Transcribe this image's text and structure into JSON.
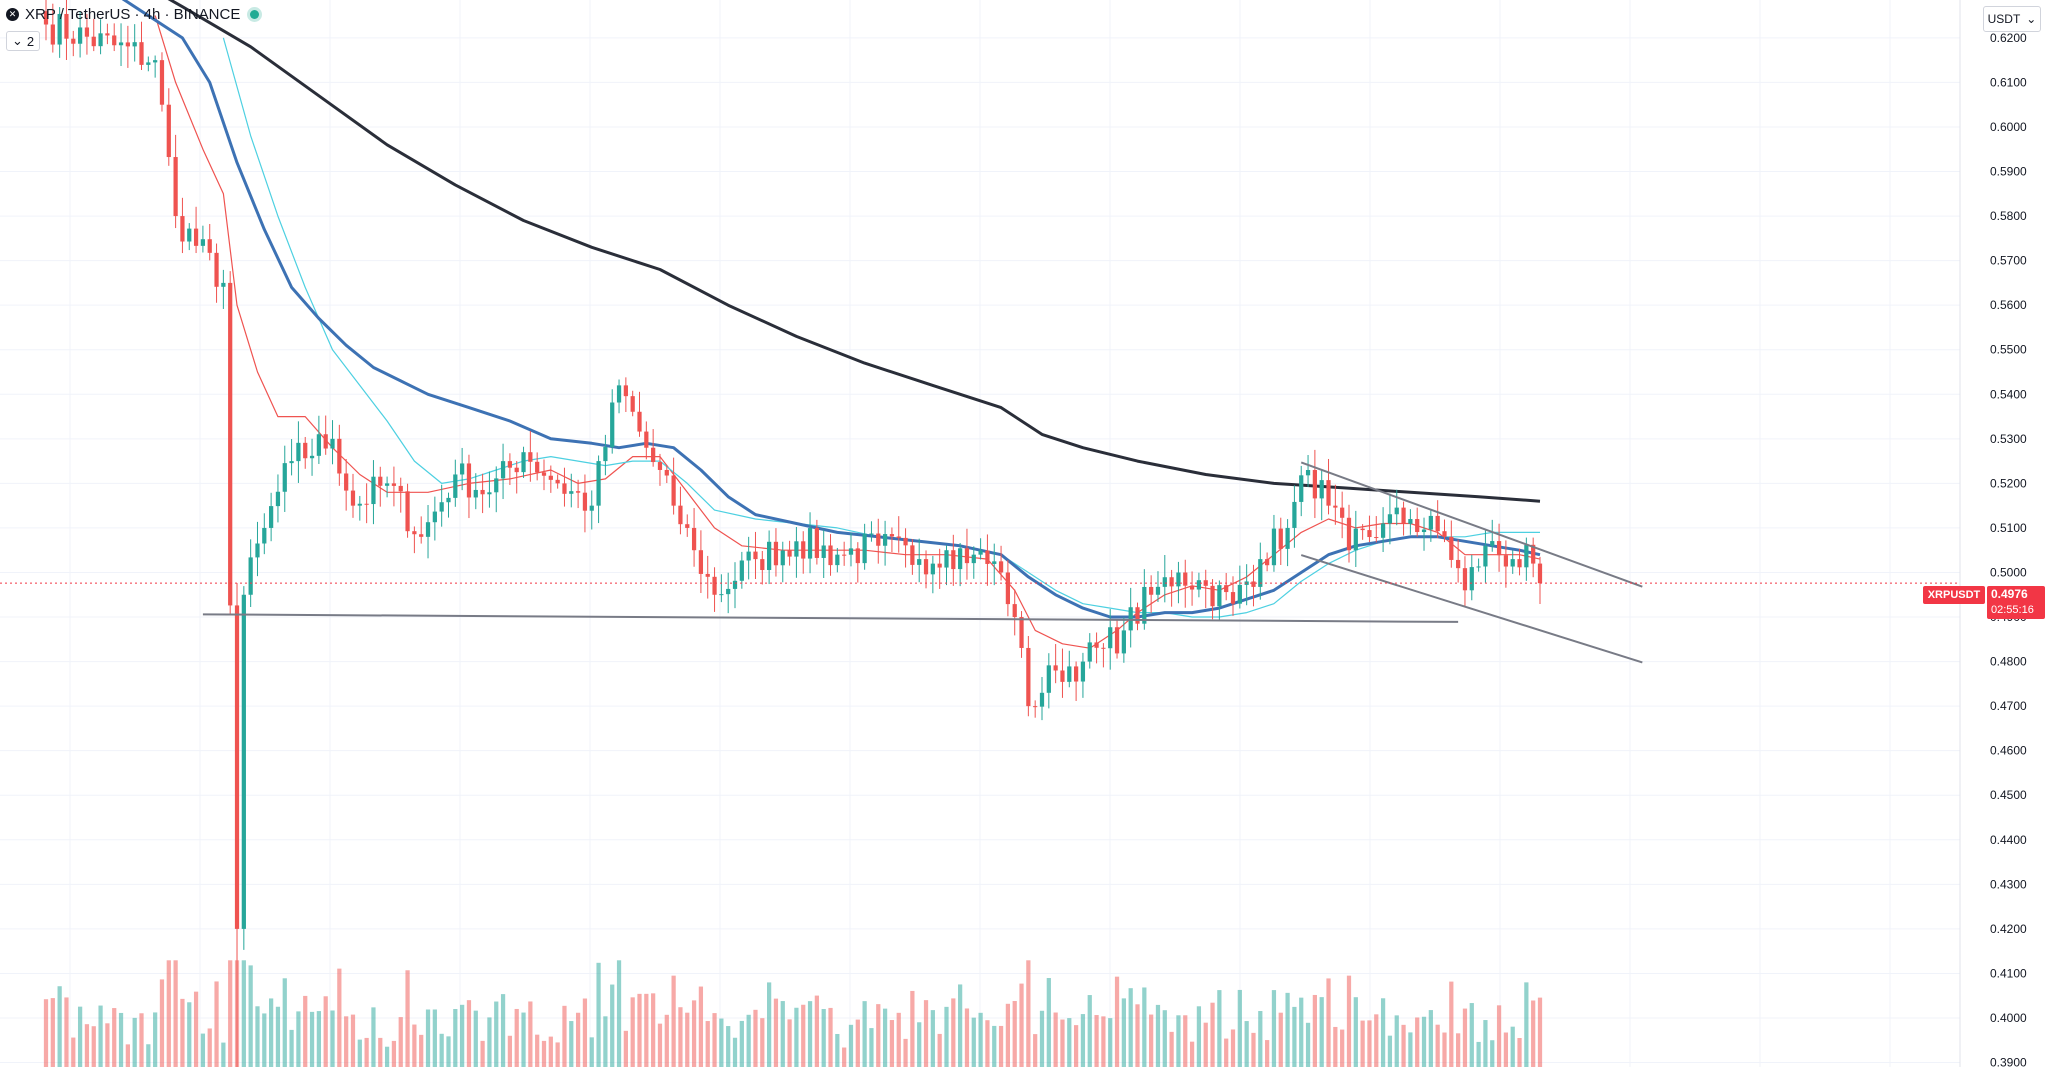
{
  "legend": {
    "symbol_icon": "x-icon",
    "title": "XRP / TetherUS · 4h · BINANCE",
    "indicator_toggle": "2",
    "indicator_toggle_icon": "chevron-down-icon"
  },
  "currency": {
    "label": "USDT",
    "icon": "chevron-down-icon"
  },
  "last_price": {
    "symbol": "XRPUSDT",
    "price": "0.4976",
    "countdown": "02:55:16"
  },
  "colors": {
    "up": "#26a69a",
    "down": "#ef5350",
    "background": "#ffffff",
    "ma_fast": "#ef5350",
    "ma_mid_light": "#4dd0e1",
    "ma_mid": "#3d72b4",
    "ma_slow": "#2a2e39",
    "trendline": "#787b86",
    "last_price_line": "#f23645"
  },
  "chart_data": {
    "type": "candlestick",
    "y_ticks": [
      "0.6200",
      "0.6100",
      "0.6000",
      "0.5900",
      "0.5800",
      "0.5700",
      "0.5600",
      "0.5500",
      "0.5400",
      "0.5300",
      "0.5200",
      "0.5100",
      "0.5000",
      "0.4900",
      "0.4800",
      "0.4700",
      "0.4600",
      "0.4500",
      "0.4400",
      "0.4300",
      "0.4200",
      "0.4100",
      "0.4000",
      "0.3900"
    ],
    "ylim": [
      0.389,
      0.6285
    ],
    "candle_count": 220,
    "close_path": [
      [
        0,
        0.623
      ],
      [
        16,
        0.615
      ],
      [
        19,
        0.58
      ],
      [
        26,
        0.565
      ],
      [
        28,
        0.42
      ],
      [
        29,
        0.495
      ],
      [
        32,
        0.51
      ],
      [
        36,
        0.525
      ],
      [
        42,
        0.53
      ],
      [
        45,
        0.515
      ],
      [
        50,
        0.52
      ],
      [
        55,
        0.508
      ],
      [
        60,
        0.522
      ],
      [
        65,
        0.518
      ],
      [
        70,
        0.527
      ],
      [
        75,
        0.52
      ],
      [
        80,
        0.515
      ],
      [
        84,
        0.542
      ],
      [
        88,
        0.528
      ],
      [
        92,
        0.515
      ],
      [
        95,
        0.505
      ],
      [
        98,
        0.495
      ],
      [
        104,
        0.503
      ],
      [
        110,
        0.507
      ],
      [
        116,
        0.504
      ],
      [
        122,
        0.506
      ],
      [
        128,
        0.503
      ],
      [
        132,
        0.505
      ],
      [
        136,
        0.504
      ],
      [
        140,
        0.5
      ],
      [
        142,
        0.49
      ],
      [
        144,
        0.47
      ],
      [
        148,
        0.478
      ],
      [
        152,
        0.48
      ],
      [
        155,
        0.483
      ],
      [
        158,
        0.487
      ],
      [
        162,
        0.495
      ],
      [
        166,
        0.5
      ],
      [
        170,
        0.497
      ],
      [
        174,
        0.493
      ],
      [
        178,
        0.503
      ],
      [
        182,
        0.51
      ],
      [
        185,
        0.523
      ],
      [
        188,
        0.515
      ],
      [
        191,
        0.505
      ],
      [
        196,
        0.511
      ],
      [
        200,
        0.512
      ],
      [
        205,
        0.508
      ],
      [
        208,
        0.496
      ],
      [
        211,
        0.506
      ],
      [
        215,
        0.503
      ],
      [
        218,
        0.502
      ],
      [
        219,
        0.4976
      ]
    ],
    "moving_averages": [
      {
        "key": "ma_fast",
        "width": 1.2,
        "points": [
          [
            16,
            0.625
          ],
          [
            19,
            0.61
          ],
          [
            23,
            0.595
          ],
          [
            26,
            0.585
          ],
          [
            28,
            0.56
          ],
          [
            31,
            0.545
          ],
          [
            34,
            0.535
          ],
          [
            38,
            0.535
          ],
          [
            42,
            0.528
          ],
          [
            46,
            0.522
          ],
          [
            50,
            0.518
          ],
          [
            56,
            0.518
          ],
          [
            62,
            0.52
          ],
          [
            68,
            0.521
          ],
          [
            74,
            0.523
          ],
          [
            78,
            0.52
          ],
          [
            82,
            0.521
          ],
          [
            86,
            0.526
          ],
          [
            90,
            0.526
          ],
          [
            94,
            0.518
          ],
          [
            98,
            0.51
          ],
          [
            102,
            0.506
          ],
          [
            108,
            0.505
          ],
          [
            114,
            0.505
          ],
          [
            120,
            0.505
          ],
          [
            126,
            0.504
          ],
          [
            132,
            0.504
          ],
          [
            138,
            0.503
          ],
          [
            142,
            0.496
          ],
          [
            145,
            0.487
          ],
          [
            149,
            0.484
          ],
          [
            153,
            0.483
          ],
          [
            157,
            0.487
          ],
          [
            160,
            0.491
          ],
          [
            164,
            0.495
          ],
          [
            168,
            0.497
          ],
          [
            172,
            0.496
          ],
          [
            176,
            0.499
          ],
          [
            180,
            0.504
          ],
          [
            184,
            0.509
          ],
          [
            188,
            0.512
          ],
          [
            192,
            0.51
          ],
          [
            196,
            0.511
          ],
          [
            200,
            0.511
          ],
          [
            204,
            0.509
          ],
          [
            208,
            0.504
          ],
          [
            212,
            0.504
          ],
          [
            216,
            0.504
          ],
          [
            219,
            0.503
          ]
        ]
      },
      {
        "key": "ma_mid_light",
        "width": 1.2,
        "points": [
          [
            26,
            0.62
          ],
          [
            30,
            0.598
          ],
          [
            34,
            0.58
          ],
          [
            38,
            0.564
          ],
          [
            42,
            0.55
          ],
          [
            46,
            0.542
          ],
          [
            50,
            0.534
          ],
          [
            54,
            0.525
          ],
          [
            58,
            0.52
          ],
          [
            62,
            0.521
          ],
          [
            66,
            0.523
          ],
          [
            70,
            0.525
          ],
          [
            74,
            0.526
          ],
          [
            78,
            0.525
          ],
          [
            82,
            0.524
          ],
          [
            86,
            0.525
          ],
          [
            90,
            0.525
          ],
          [
            94,
            0.52
          ],
          [
            98,
            0.514
          ],
          [
            104,
            0.512
          ],
          [
            110,
            0.511
          ],
          [
            116,
            0.51
          ],
          [
            122,
            0.508
          ],
          [
            128,
            0.507
          ],
          [
            134,
            0.506
          ],
          [
            140,
            0.504
          ],
          [
            144,
            0.5
          ],
          [
            148,
            0.496
          ],
          [
            152,
            0.493
          ],
          [
            156,
            0.492
          ],
          [
            160,
            0.491
          ],
          [
            164,
            0.491
          ],
          [
            168,
            0.49
          ],
          [
            172,
            0.49
          ],
          [
            176,
            0.491
          ],
          [
            180,
            0.493
          ],
          [
            184,
            0.498
          ],
          [
            188,
            0.502
          ],
          [
            192,
            0.505
          ],
          [
            196,
            0.507
          ],
          [
            200,
            0.508
          ],
          [
            204,
            0.508
          ],
          [
            208,
            0.508
          ],
          [
            212,
            0.509
          ],
          [
            216,
            0.509
          ],
          [
            219,
            0.509
          ]
        ]
      },
      {
        "key": "ma_mid",
        "width": 3,
        "points": [
          [
            10,
            0.63
          ],
          [
            20,
            0.62
          ],
          [
            24,
            0.61
          ],
          [
            28,
            0.592
          ],
          [
            32,
            0.577
          ],
          [
            36,
            0.564
          ],
          [
            40,
            0.557
          ],
          [
            44,
            0.551
          ],
          [
            48,
            0.546
          ],
          [
            52,
            0.543
          ],
          [
            56,
            0.54
          ],
          [
            62,
            0.537
          ],
          [
            68,
            0.534
          ],
          [
            74,
            0.53
          ],
          [
            80,
            0.529
          ],
          [
            84,
            0.528
          ],
          [
            88,
            0.529
          ],
          [
            92,
            0.528
          ],
          [
            96,
            0.523
          ],
          [
            100,
            0.517
          ],
          [
            104,
            0.513
          ],
          [
            110,
            0.511
          ],
          [
            116,
            0.509
          ],
          [
            122,
            0.508
          ],
          [
            128,
            0.507
          ],
          [
            134,
            0.506
          ],
          [
            140,
            0.504
          ],
          [
            144,
            0.499
          ],
          [
            148,
            0.495
          ],
          [
            152,
            0.492
          ],
          [
            156,
            0.49
          ],
          [
            160,
            0.49
          ],
          [
            164,
            0.491
          ],
          [
            168,
            0.491
          ],
          [
            172,
            0.492
          ],
          [
            176,
            0.494
          ],
          [
            180,
            0.496
          ],
          [
            184,
            0.5
          ],
          [
            188,
            0.504
          ],
          [
            192,
            0.506
          ],
          [
            196,
            0.507
          ],
          [
            200,
            0.508
          ],
          [
            204,
            0.508
          ],
          [
            208,
            0.507
          ],
          [
            212,
            0.506
          ],
          [
            216,
            0.505
          ],
          [
            219,
            0.504
          ]
        ]
      },
      {
        "key": "ma_slow",
        "width": 3,
        "points": [
          [
            12,
            0.634
          ],
          [
            20,
            0.627
          ],
          [
            30,
            0.618
          ],
          [
            40,
            0.607
          ],
          [
            50,
            0.596
          ],
          [
            60,
            0.587
          ],
          [
            70,
            0.579
          ],
          [
            80,
            0.573
          ],
          [
            90,
            0.568
          ],
          [
            100,
            0.56
          ],
          [
            110,
            0.553
          ],
          [
            120,
            0.547
          ],
          [
            130,
            0.542
          ],
          [
            140,
            0.537
          ],
          [
            146,
            0.531
          ],
          [
            152,
            0.528
          ],
          [
            160,
            0.525
          ],
          [
            170,
            0.522
          ],
          [
            180,
            0.52
          ],
          [
            190,
            0.519
          ],
          [
            200,
            0.518
          ],
          [
            210,
            0.517
          ],
          [
            219,
            0.516
          ]
        ]
      }
    ],
    "trendlines": [
      {
        "from": [
          23,
          0.4906
        ],
        "to": [
          207,
          0.4889
        ]
      },
      {
        "from": [
          184,
          0.5247
        ],
        "to": [
          234,
          0.4968
        ]
      },
      {
        "from": [
          184,
          0.5039
        ],
        "to": [
          234,
          0.4798
        ]
      }
    ],
    "volume": {
      "max_height_fraction_of_plot": 0.1
    }
  }
}
